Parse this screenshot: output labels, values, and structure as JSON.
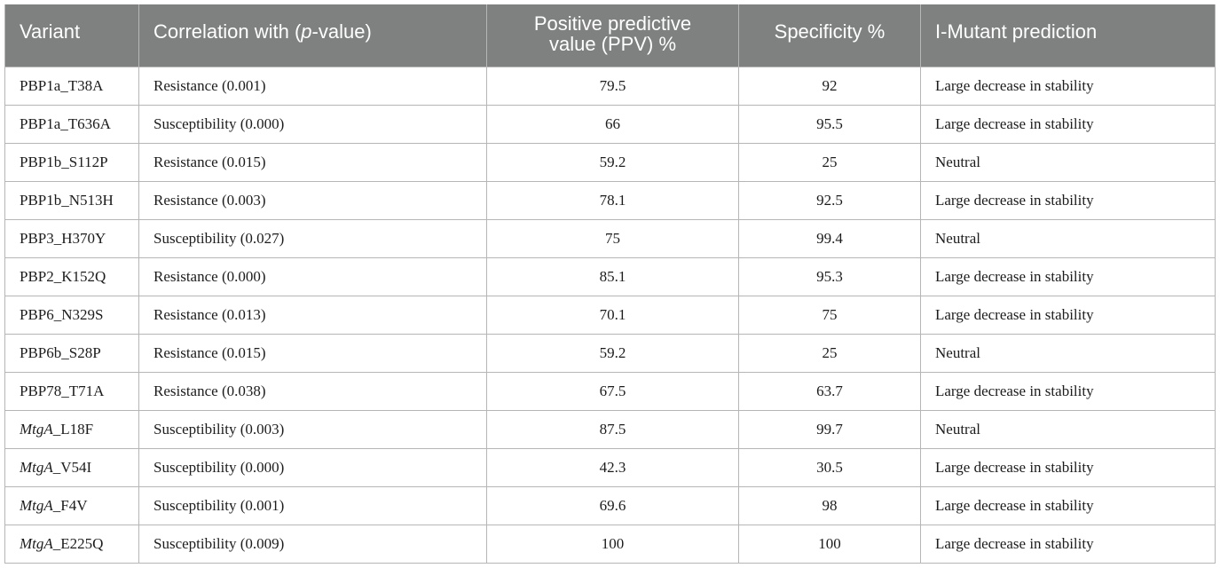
{
  "table": {
    "headers": {
      "variant": "Variant",
      "correlation_prefix": "Correlation with (",
      "correlation_p": "p",
      "correlation_suffix": "-value)",
      "ppv_line1": "Positive predictive",
      "ppv_line2": "value (PPV) %",
      "specificity": "Specificity %",
      "imutant": "I-Mutant prediction"
    },
    "rows": [
      {
        "variant_italic": "",
        "variant": "PBP1a_T38A",
        "correlation": "Resistance (0.001)",
        "ppv": "79.5",
        "specificity": "92",
        "prediction": "Large decrease in stability"
      },
      {
        "variant_italic": "",
        "variant": "PBP1a_T636A",
        "correlation": "Susceptibility (0.000)",
        "ppv": "66",
        "specificity": "95.5",
        "prediction": "Large decrease in stability"
      },
      {
        "variant_italic": "",
        "variant": "PBP1b_S112P",
        "correlation": "Resistance (0.015)",
        "ppv": "59.2",
        "specificity": "25",
        "prediction": "Neutral"
      },
      {
        "variant_italic": "",
        "variant": "PBP1b_N513H",
        "correlation": "Resistance (0.003)",
        "ppv": "78.1",
        "specificity": "92.5",
        "prediction": "Large decrease in stability"
      },
      {
        "variant_italic": "",
        "variant": "PBP3_H370Y",
        "correlation": "Susceptibility (0.027)",
        "ppv": "75",
        "specificity": "99.4",
        "prediction": "Neutral"
      },
      {
        "variant_italic": "",
        "variant": "PBP2_K152Q",
        "correlation": "Resistance (0.000)",
        "ppv": "85.1",
        "specificity": "95.3",
        "prediction": "Large decrease in stability"
      },
      {
        "variant_italic": "",
        "variant": "PBP6_N329S",
        "correlation": "Resistance (0.013)",
        "ppv": "70.1",
        "specificity": "75",
        "prediction": "Large decrease in stability"
      },
      {
        "variant_italic": "",
        "variant": "PBP6b_S28P",
        "correlation": "Resistance (0.015)",
        "ppv": "59.2",
        "specificity": "25",
        "prediction": "Neutral"
      },
      {
        "variant_italic": "",
        "variant": "PBP78_T71A",
        "correlation": "Resistance (0.038)",
        "ppv": "67.5",
        "specificity": "63.7",
        "prediction": "Large decrease in stability"
      },
      {
        "variant_italic": "MtgA",
        "variant": "_L18F",
        "correlation": "Susceptibility (0.003)",
        "ppv": "87.5",
        "specificity": "99.7",
        "prediction": "Neutral"
      },
      {
        "variant_italic": "MtgA",
        "variant": "_V54I",
        "correlation": "Susceptibility (0.000)",
        "ppv": "42.3",
        "specificity": "30.5",
        "prediction": "Large decrease in stability"
      },
      {
        "variant_italic": "MtgA",
        "variant": "_F4V",
        "correlation": "Susceptibility (0.001)",
        "ppv": "69.6",
        "specificity": "98",
        "prediction": "Large decrease in stability"
      },
      {
        "variant_italic": "MtgA",
        "variant": "_E225Q",
        "correlation": "Susceptibility (0.009)",
        "ppv": "100",
        "specificity": "100",
        "prediction": "Large decrease in stability"
      }
    ]
  }
}
